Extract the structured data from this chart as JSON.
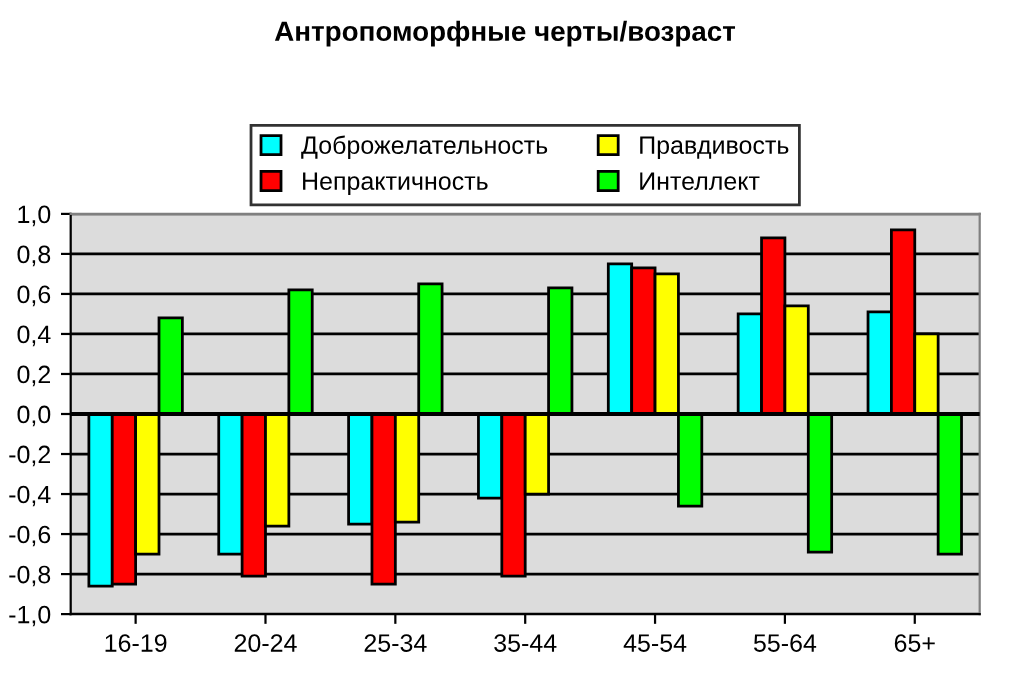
{
  "chart_data": {
    "type": "bar",
    "title": "Антропоморфные черты/возраст",
    "categories": [
      "16-19",
      "20-24",
      "25-34",
      "35-44",
      "45-54",
      "55-64",
      "65+"
    ],
    "series": [
      {
        "name": "Доброжелательность",
        "color": "#00ffff",
        "values": [
          -0.86,
          -0.7,
          -0.55,
          -0.42,
          0.75,
          0.5,
          0.51
        ]
      },
      {
        "name": "Непрактичность",
        "color": "#ff0000",
        "values": [
          -0.85,
          -0.81,
          -0.85,
          -0.81,
          0.73,
          0.88,
          0.92
        ]
      },
      {
        "name": "Правдивость",
        "color": "#ffff00",
        "values": [
          -0.7,
          -0.56,
          -0.54,
          -0.4,
          0.7,
          0.54,
          0.4
        ]
      },
      {
        "name": "Интеллект",
        "color": "#00ff00",
        "values": [
          0.48,
          0.62,
          0.65,
          0.63,
          -0.46,
          -0.69,
          -0.7
        ]
      }
    ],
    "ylim": [
      -1.0,
      1.0
    ],
    "yticks": [
      {
        "value": -1.0,
        "label": "-1,0"
      },
      {
        "value": -0.8,
        "label": "-0,8"
      },
      {
        "value": -0.6,
        "label": "-0,6"
      },
      {
        "value": -0.4,
        "label": "-0,4"
      },
      {
        "value": -0.2,
        "label": "-0,2"
      },
      {
        "value": 0.0,
        "label": "0,0"
      },
      {
        "value": 0.2,
        "label": "0,2"
      },
      {
        "value": 0.4,
        "label": "0,4"
      },
      {
        "value": 0.6,
        "label": "0,6"
      },
      {
        "value": 0.8,
        "label": "0,8"
      },
      {
        "value": 1.0,
        "label": "1,0"
      }
    ],
    "grid": "y",
    "legend": "top"
  }
}
